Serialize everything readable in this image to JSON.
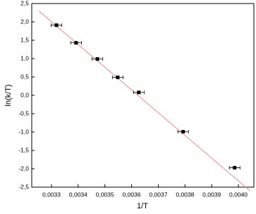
{
  "chart_data": {
    "type": "scatter",
    "x_label": "1/T",
    "y_label": "ln(k/T)",
    "series": [
      {
        "color": "#000000",
        "x": [
          0.0033185,
          0.003392,
          0.003472,
          0.003548,
          0.003627,
          0.003793,
          0.003986
        ],
        "values": [
          1.91,
          1.43,
          0.99,
          0.49,
          0.08,
          -0.99,
          -1.97
        ],
        "xerr": [
          2e-05,
          2e-05,
          2e-05,
          2e-05,
          2e-05,
          2e-05,
          2e-05
        ]
      }
    ],
    "fit": {
      "color": "#f08c8c",
      "x": [
        0.003252,
        0.004044
      ],
      "values": [
        2.3,
        -2.6
      ]
    },
    "xlim": [
      0.003226,
      0.004058
    ],
    "ylim": [
      -2.5,
      2.5
    ],
    "xticks": [
      {
        "value": 0.0033,
        "label": "0,0033"
      },
      {
        "value": 0.0034,
        "label": "0,0034"
      },
      {
        "value": 0.0035,
        "label": "0,0035"
      },
      {
        "value": 0.0036,
        "label": "0,0036"
      },
      {
        "value": 0.0037,
        "label": "0,0037"
      },
      {
        "value": 0.0038,
        "label": "0,0038"
      },
      {
        "value": 0.0039,
        "label": "0,0039"
      },
      {
        "value": 0.004,
        "label": "0,0040"
      }
    ],
    "yticks": [
      {
        "value": 2.5,
        "label": "2,5"
      },
      {
        "value": 2,
        "label": "2,0"
      },
      {
        "value": 1.5,
        "label": "1,5"
      },
      {
        "value": 1,
        "label": "1,0"
      },
      {
        "value": 0.5,
        "label": "0,5"
      },
      {
        "value": 0,
        "label": "0,0"
      },
      {
        "value": -0.5,
        "label": "-0,5"
      },
      {
        "value": -1,
        "label": "-1,0"
      },
      {
        "value": -1.5,
        "label": "-1,5"
      },
      {
        "value": -2,
        "label": "-2,0"
      },
      {
        "value": -2.5,
        "label": "-2,5"
      }
    ]
  }
}
